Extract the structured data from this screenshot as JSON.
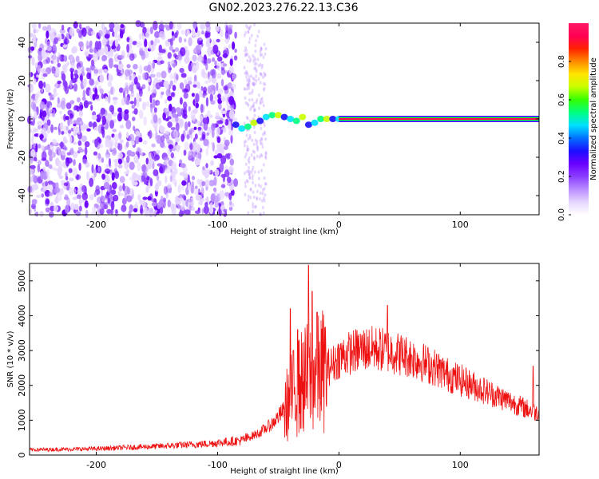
{
  "title": "GN02.2023.276.22.13.C36",
  "colors": {
    "line": "#ee1111",
    "colormap": [
      "#ffffff",
      "#e6d5ff",
      "#b98cff",
      "#8a3cff",
      "#6a00ff",
      "#1a10ff",
      "#0070ff",
      "#00e0ff",
      "#00ff80",
      "#33ff00",
      "#c8ff00",
      "#ffe600",
      "#ff8a00",
      "#ff2200",
      "#ff0055",
      "#ff1a66"
    ]
  },
  "chart_data": [
    {
      "type": "heatmap",
      "xlabel": "Height of straight line (km)",
      "ylabel": "Frequency (Hz)",
      "xlim": [
        -255,
        165
      ],
      "ylim": [
        -50,
        50
      ],
      "xticks": [
        -200,
        -100,
        0,
        100
      ],
      "xtick_labels": [
        "-200",
        "-100",
        "0",
        "100"
      ],
      "yticks": [
        -40,
        -20,
        0,
        20,
        40
      ],
      "ytick_labels": [
        "-40",
        "-20",
        "0",
        "20",
        "40"
      ],
      "colorbar": {
        "label": "Normalized spectral amplitude",
        "range": [
          0,
          1
        ],
        "ticks": [
          0.0,
          0.2,
          0.4,
          0.6,
          0.8
        ],
        "tick_labels": [
          "0.0",
          "0.2",
          "0.4",
          "0.6",
          "0.8"
        ]
      },
      "dominant_tone": {
        "frequency": 0,
        "x_start": 0,
        "x_end": 165,
        "amplitude": 0.95
      },
      "noise_region": {
        "x_start": -255,
        "x_end": -85,
        "amplitude_range": [
          0.05,
          0.3
        ]
      },
      "transition_track": [
        [
          -85,
          -3
        ],
        [
          -80,
          -5
        ],
        [
          -75,
          -4
        ],
        [
          -70,
          -2
        ],
        [
          -65,
          -1
        ],
        [
          -60,
          1
        ],
        [
          -55,
          2
        ],
        [
          -50,
          2
        ],
        [
          -45,
          1
        ],
        [
          -40,
          0
        ],
        [
          -35,
          -1
        ],
        [
          -30,
          1
        ],
        [
          -25,
          -3
        ],
        [
          -20,
          -2
        ],
        [
          -15,
          0
        ],
        [
          -10,
          0
        ],
        [
          -5,
          0
        ],
        [
          0,
          0
        ]
      ]
    },
    {
      "type": "line",
      "xlabel": "Height of straight line (km)",
      "ylabel": "SNR (10 * v/v)",
      "xlim": [
        -255,
        165
      ],
      "ylim": [
        0,
        5500
      ],
      "xticks": [
        -200,
        -100,
        0,
        100
      ],
      "xtick_labels": [
        "-200",
        "-100",
        "0",
        "100"
      ],
      "yticks": [
        0,
        1000,
        2000,
        3000,
        4000,
        5000
      ],
      "ytick_labels": [
        "0",
        "1000",
        "2000",
        "3000",
        "4000",
        "5000"
      ],
      "envelope": {
        "x": [
          -255,
          -200,
          -150,
          -110,
          -80,
          -65,
          -55,
          -45,
          -40,
          -35,
          -30,
          -22,
          -15,
          -10,
          -5,
          0,
          10,
          20,
          30,
          40,
          50,
          60,
          70,
          80,
          90,
          100,
          110,
          120,
          130,
          140,
          150,
          160,
          165
        ],
        "y": [
          150,
          180,
          250,
          320,
          420,
          650,
          900,
          1300,
          1650,
          1900,
          2100,
          2300,
          2400,
          2500,
          2600,
          2800,
          2950,
          3050,
          3050,
          3000,
          2900,
          2800,
          2650,
          2500,
          2300,
          2150,
          2000,
          1850,
          1700,
          1550,
          1400,
          1250,
          1200
        ]
      },
      "spikes": [
        {
          "x": -40,
          "y": 4200
        },
        {
          "x": -34,
          "y": 3600
        },
        {
          "x": -25,
          "y": 5450
        },
        {
          "x": -22,
          "y": 4700
        },
        {
          "x": -18,
          "y": 4100
        },
        {
          "x": 40,
          "y": 4300
        },
        {
          "x": 160,
          "y": 2550
        }
      ]
    }
  ]
}
